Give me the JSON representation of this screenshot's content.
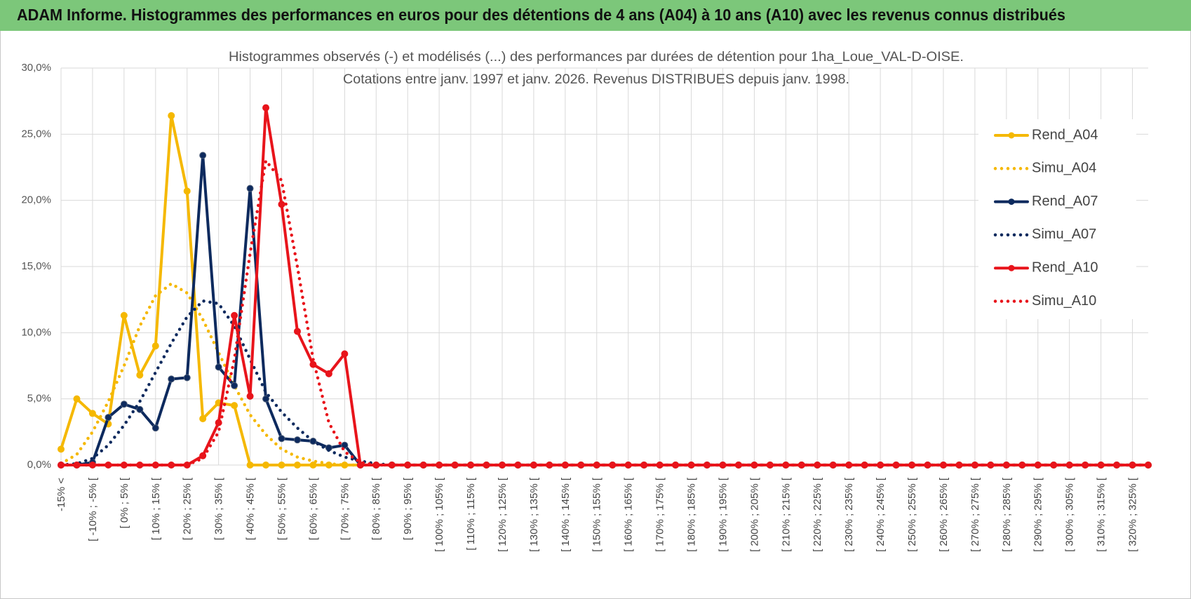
{
  "header": "ADAM Informe. Histogrammes des performances en euros pour des détentions de 4 ans (A04) à 10 ans (A10) avec les revenus connus distribués",
  "chart_data": {
    "type": "line",
    "title": "Histogrammes observés (-) et modélisés (...) des performances par durées de détention pour 1ha_Loue_VAL-D-OISE.",
    "subtitle": "Cotations entre janv. 1997 et janv. 2026. Revenus DISTRIBUES depuis janv. 1998.",
    "categories": [
      "-15% <",
      null,
      "[ -10% ; -5% [",
      null,
      "[ 0% ; 5% [",
      null,
      "[ 10% ; 15% [",
      null,
      "[ 20% ; 25% [",
      null,
      "[ 30% ; 35% [",
      null,
      "[ 40% ; 45% [",
      null,
      "[ 50% ; 55% [",
      null,
      "[ 60% ; 65% [",
      null,
      "[ 70% ; 75% [",
      null,
      "[ 80% ; 85% [",
      null,
      "[ 90% ; 95% [",
      null,
      "[ 100% ; 105% [",
      null,
      "[ 110% ; 115% [",
      null,
      "[ 120% ; 125% [",
      null,
      "[ 130% ; 135% [",
      null,
      "[ 140% ; 145% [",
      null,
      "[ 150% ; 155% [",
      null,
      "[ 160% ; 165% [",
      null,
      "[ 170% ; 175% [",
      null,
      "[ 180% ; 185% [",
      null,
      "[ 190% ; 195% [",
      null,
      "[ 200% ; 205% [",
      null,
      "[ 210% ; 215% [",
      null,
      "[ 220% ; 225% [",
      null,
      "[ 230% ; 235% [",
      null,
      "[ 240% ; 245% [",
      null,
      "[ 250% ; 255% [",
      null,
      "[ 260% ; 265% [",
      null,
      "[ 270% ; 275% [",
      null,
      "[ 280% ; 285% [",
      null,
      "[ 290% ; 295% [",
      null,
      "[ 300% ; 305% [",
      null,
      "[ 310% ; 315% [",
      null,
      "[ 320% ; 325% [",
      null
    ],
    "series": [
      {
        "name": "Rend_A04",
        "color": "#f5b800",
        "dash": "solid",
        "marker": true,
        "values": [
          1.2,
          5,
          3.9,
          3.1,
          11.3,
          6.8,
          9,
          26.4,
          20.7,
          3.5,
          4.7,
          4.5,
          0,
          0,
          0,
          0,
          0,
          0,
          0,
          0,
          0,
          0,
          0,
          0,
          0,
          0,
          0,
          0,
          0,
          0,
          0,
          0,
          0,
          0,
          0,
          0,
          0,
          0,
          0,
          0,
          0,
          0,
          0,
          0,
          0,
          0,
          0,
          0,
          0,
          0,
          0,
          0,
          0,
          0,
          0,
          0,
          0,
          0,
          0,
          0,
          0,
          0,
          0,
          0,
          0,
          0,
          0,
          0,
          0,
          0
        ]
      },
      {
        "name": "Simu_A04",
        "color": "#f5b800",
        "dash": "dotted",
        "marker": false,
        "values": [
          0.1,
          0.8,
          2.5,
          4.8,
          7.5,
          10.5,
          12.8,
          13.7,
          13,
          11,
          8.5,
          6,
          3.8,
          2.3,
          1.2,
          0.6,
          0.3,
          0.1,
          0,
          0,
          0,
          0,
          0,
          0,
          0,
          0,
          0,
          0,
          0,
          0,
          0,
          0,
          0,
          0,
          0,
          0,
          0,
          0,
          0,
          0,
          0,
          0,
          0,
          0,
          0,
          0,
          0,
          0,
          0,
          0,
          0,
          0,
          0,
          0,
          0,
          0,
          0,
          0,
          0,
          0,
          0,
          0,
          0,
          0,
          0,
          0,
          0,
          0,
          0,
          0
        ]
      },
      {
        "name": "Rend_A07",
        "color": "#0d2a5e",
        "dash": "solid",
        "marker": true,
        "values": [
          0,
          0,
          0.2,
          3.6,
          4.6,
          4.2,
          2.8,
          6.5,
          6.6,
          23.4,
          7.4,
          6,
          20.9,
          5,
          2,
          1.9,
          1.8,
          1.3,
          1.5,
          0,
          0,
          0,
          0,
          0,
          0,
          0,
          0,
          0,
          0,
          0,
          0,
          0,
          0,
          0,
          0,
          0,
          0,
          0,
          0,
          0,
          0,
          0,
          0,
          0,
          0,
          0,
          0,
          0,
          0,
          0,
          0,
          0,
          0,
          0,
          0,
          0,
          0,
          0,
          0,
          0,
          0,
          0,
          0,
          0,
          0,
          0,
          0,
          0,
          0,
          0
        ]
      },
      {
        "name": "Simu_A07",
        "color": "#0d2a5e",
        "dash": "dotted",
        "marker": false,
        "values": [
          0,
          0.1,
          0.5,
          1.5,
          3,
          4.8,
          7,
          9.2,
          11.2,
          12.4,
          12.2,
          10.5,
          8,
          5.5,
          4,
          2.8,
          1.8,
          1.1,
          0.6,
          0.3,
          0.1,
          0,
          0,
          0,
          0,
          0,
          0,
          0,
          0,
          0,
          0,
          0,
          0,
          0,
          0,
          0,
          0,
          0,
          0,
          0,
          0,
          0,
          0,
          0,
          0,
          0,
          0,
          0,
          0,
          0,
          0,
          0,
          0,
          0,
          0,
          0,
          0,
          0,
          0,
          0,
          0,
          0,
          0,
          0,
          0,
          0,
          0,
          0,
          0,
          0
        ]
      },
      {
        "name": "Rend_A10",
        "color": "#e8141b",
        "dash": "solid",
        "marker": true,
        "values": [
          0,
          0,
          0,
          0,
          0,
          0,
          0,
          0,
          0,
          0.7,
          3.2,
          11.3,
          5.2,
          27,
          19.7,
          10.1,
          7.6,
          6.9,
          8.4,
          0,
          0,
          0,
          0,
          0,
          0,
          0,
          0,
          0,
          0,
          0,
          0,
          0,
          0,
          0,
          0,
          0,
          0,
          0,
          0,
          0,
          0,
          0,
          0,
          0,
          0,
          0,
          0,
          0,
          0,
          0,
          0,
          0,
          0,
          0,
          0,
          0,
          0,
          0,
          0,
          0,
          0,
          0,
          0,
          0,
          0,
          0,
          0,
          0,
          0,
          0
        ]
      },
      {
        "name": "Simu_A10",
        "color": "#e8141b",
        "dash": "dotted",
        "marker": false,
        "values": [
          0,
          0,
          0,
          0,
          0,
          0,
          0,
          0,
          0,
          0.5,
          2.5,
          8,
          16,
          23,
          21.5,
          15,
          8,
          3.2,
          1,
          0.2,
          0,
          0,
          0,
          0,
          0,
          0,
          0,
          0,
          0,
          0,
          0,
          0,
          0,
          0,
          0,
          0,
          0,
          0,
          0,
          0,
          0,
          0,
          0,
          0,
          0,
          0,
          0,
          0,
          0,
          0,
          0,
          0,
          0,
          0,
          0,
          0,
          0,
          0,
          0,
          0,
          0,
          0,
          0,
          0,
          0,
          0,
          0,
          0,
          0,
          0
        ]
      }
    ],
    "ylim": [
      0,
      30
    ],
    "yticks": [
      {
        "value": 0,
        "label": "0,0%"
      },
      {
        "value": 5,
        "label": "5,0%"
      },
      {
        "value": 10,
        "label": "10,0%"
      },
      {
        "value": 15,
        "label": "15,0%"
      },
      {
        "value": 20,
        "label": "20,0%"
      },
      {
        "value": 25,
        "label": "25,0%"
      },
      {
        "value": 30,
        "label": "30,0%"
      }
    ],
    "grid": true,
    "legend": "right"
  }
}
